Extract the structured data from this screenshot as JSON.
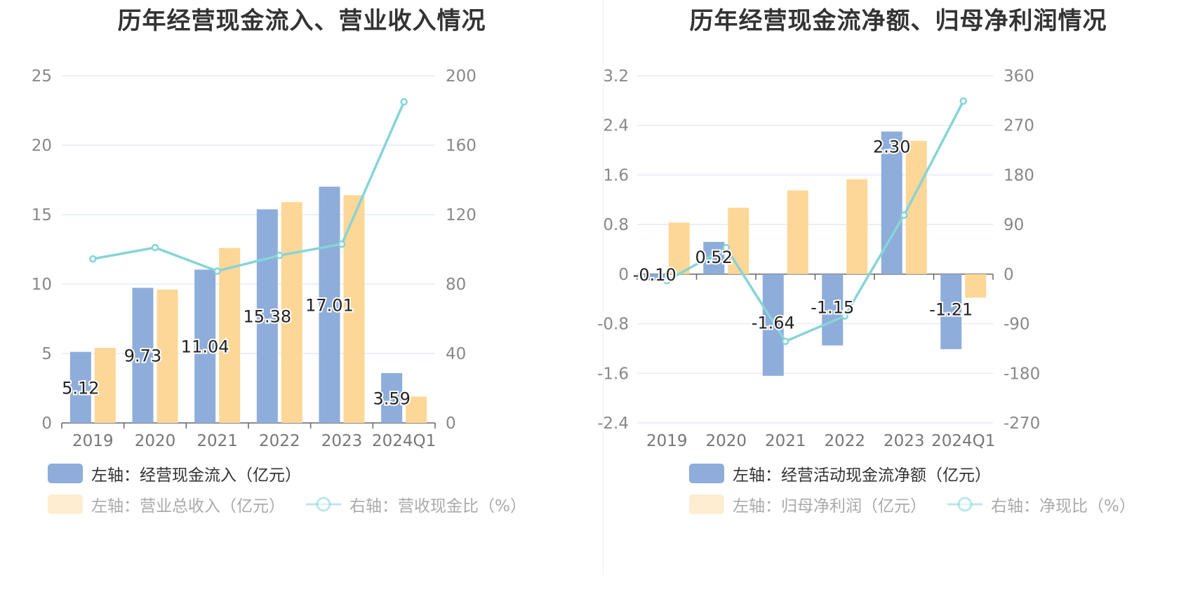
{
  "colors": {
    "blue": "#8eadda",
    "orange": "#fdd797",
    "line": "#86d4d8",
    "grid": "#e0e6f1",
    "legend_active_text": "#333333",
    "legend_inactive_text": "#aaaaaa"
  },
  "chart_data": [
    {
      "type": "bar+line",
      "title": "历年经营现金流入、营业收入情况",
      "categories": [
        "2019",
        "2020",
        "2021",
        "2022",
        "2023",
        "2024Q1"
      ],
      "left_axis": {
        "ticks": [
          "0",
          "5",
          "10",
          "15",
          "20",
          "25"
        ],
        "min": 0,
        "max": 25
      },
      "right_axis": {
        "ticks": [
          "0",
          "40",
          "80",
          "120",
          "160",
          "200"
        ],
        "min": 0,
        "max": 200
      },
      "series": [
        {
          "name": "左轴：经营现金流入（亿元）",
          "type": "bar",
          "axis": "left",
          "color": "#8eadda",
          "values": [
            5.12,
            9.73,
            11.04,
            15.38,
            17.01,
            3.59
          ],
          "labels": [
            "5.12",
            "9.73",
            "11.04",
            "15.38",
            "17.01",
            "3.59"
          ]
        },
        {
          "name": "左轴：营业总收入（亿元）",
          "type": "bar",
          "axis": "left",
          "color": "#fdd797",
          "values": [
            5.4,
            9.6,
            12.6,
            15.9,
            16.4,
            1.9
          ]
        },
        {
          "name": "右轴：营收现金比（%）",
          "type": "line",
          "axis": "right",
          "color": "#86d4d8",
          "values": [
            94.5,
            101,
            87.5,
            96.5,
            103,
            185
          ]
        }
      ],
      "legend": [
        {
          "label": "左轴：经营现金流入（亿元）",
          "kind": "bar",
          "color": "#8eadda",
          "active": true
        },
        {
          "label": "左轴：营业总收入（亿元）",
          "kind": "bar",
          "color": "#fdd797",
          "active": false
        },
        {
          "label": "右轴：营收现金比（%）",
          "kind": "line",
          "color": "#86d4d8",
          "active": false
        }
      ]
    },
    {
      "type": "bar+line",
      "title": "历年经营现金流净额、归母净利润情况",
      "categories": [
        "2019",
        "2020",
        "2021",
        "2022",
        "2023",
        "2024Q1"
      ],
      "left_axis": {
        "ticks": [
          "-2.4",
          "-1.6",
          "-0.8",
          "0",
          "0.8",
          "1.6",
          "2.4",
          "3.2"
        ],
        "min": -2.4,
        "max": 3.2
      },
      "right_axis": {
        "ticks": [
          "-270",
          "-180",
          "-90",
          "0",
          "90",
          "180",
          "270",
          "360"
        ],
        "min": -270,
        "max": 360
      },
      "series": [
        {
          "name": "左轴：经营活动现金流净额（亿元）",
          "type": "bar",
          "axis": "left",
          "color": "#8eadda",
          "values": [
            -0.1,
            0.52,
            -1.64,
            -1.15,
            2.3,
            -1.21
          ],
          "labels": [
            "-0.10",
            "0.52",
            "-1.64",
            "-1.15",
            "2.30",
            "-1.21"
          ]
        },
        {
          "name": "左轴：归母净利润（亿元）",
          "type": "bar",
          "axis": "left",
          "color": "#fdd797",
          "values": [
            0.83,
            1.07,
            1.35,
            1.53,
            2.15,
            -0.38
          ]
        },
        {
          "name": "右轴：净现比（%）",
          "type": "line",
          "axis": "right",
          "color": "#86d4d8",
          "values": [
            -12,
            48,
            -122,
            -76,
            107,
            314
          ]
        }
      ],
      "legend": [
        {
          "label": "左轴：经营活动现金流净额（亿元）",
          "kind": "bar",
          "color": "#8eadda",
          "active": true
        },
        {
          "label": "左轴：归母净利润（亿元）",
          "kind": "bar",
          "color": "#fdd797",
          "active": false
        },
        {
          "label": "右轴：净现比（%）",
          "kind": "line",
          "color": "#86d4d8",
          "active": false
        }
      ]
    }
  ]
}
